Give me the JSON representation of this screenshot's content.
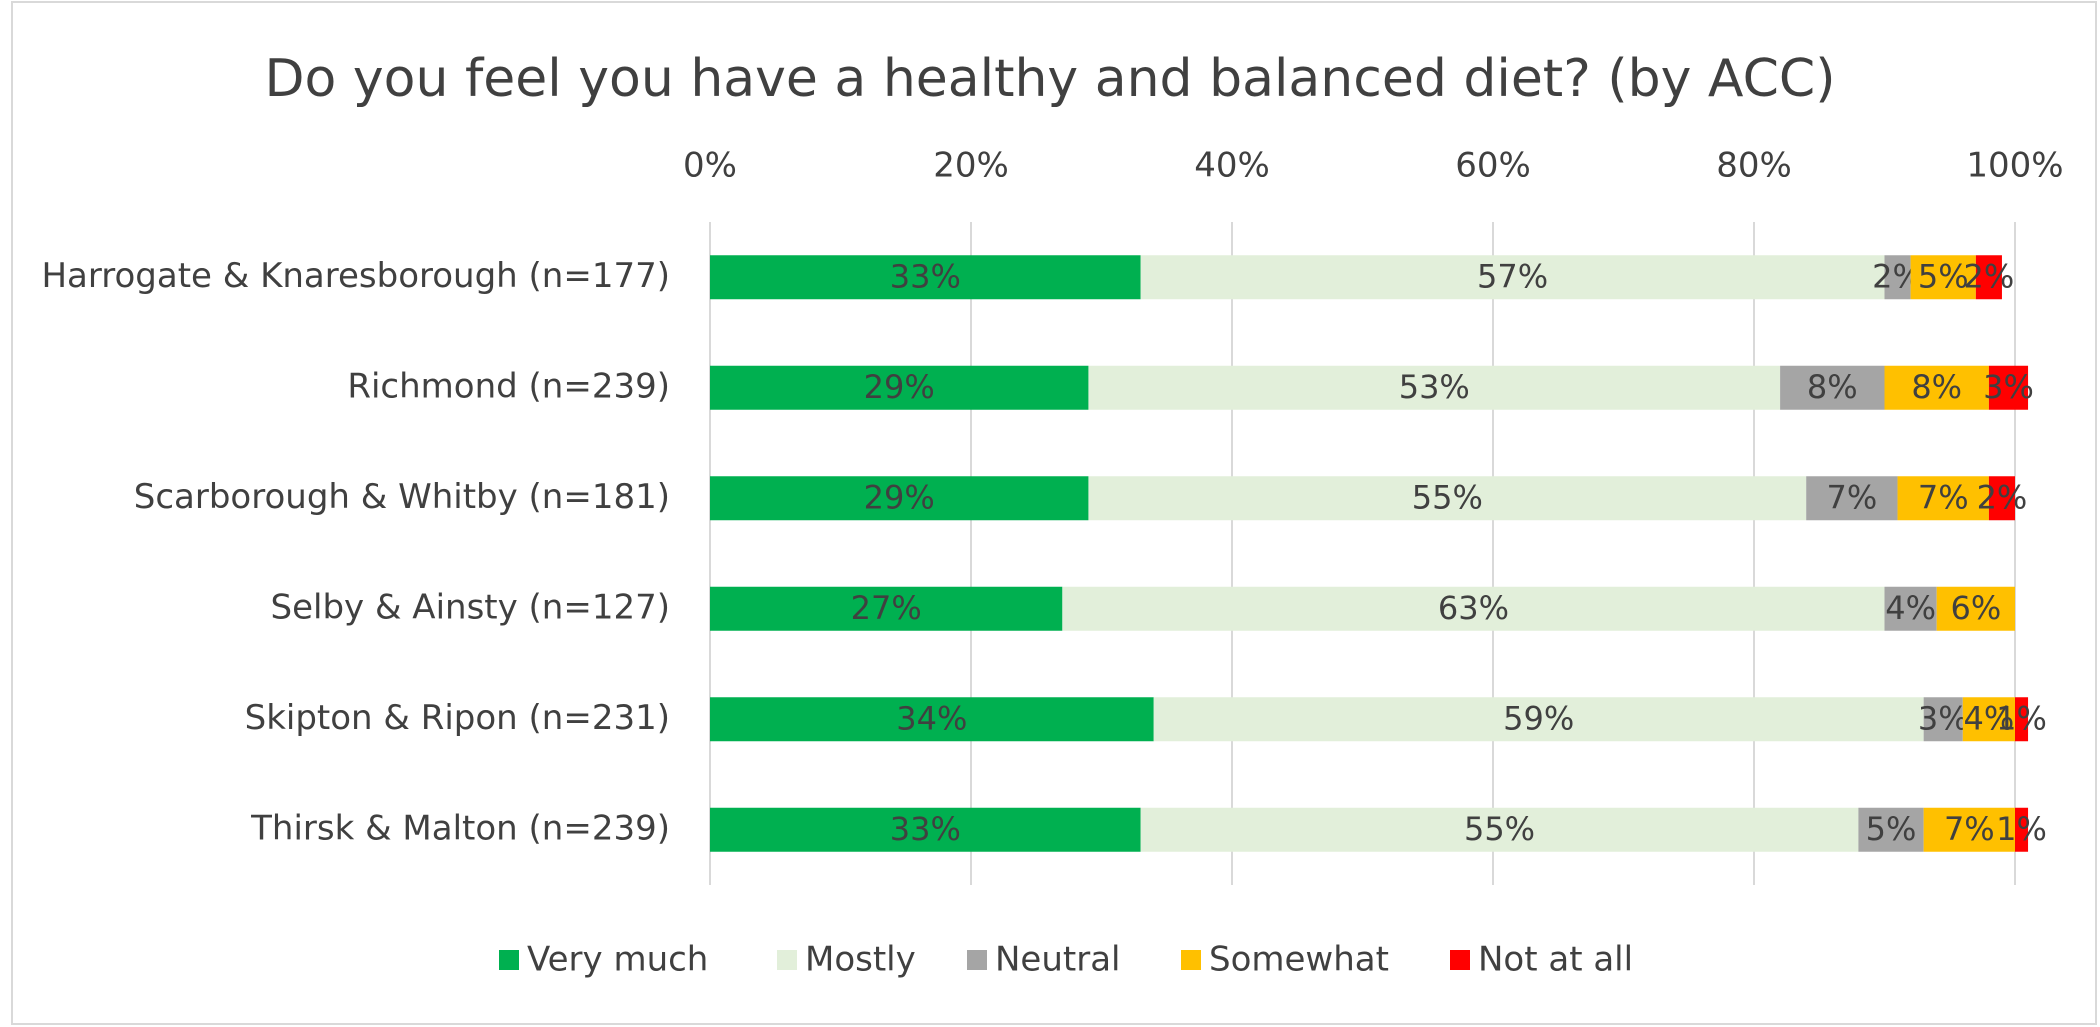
{
  "chart_data": {
    "type": "stacked-bar-horizontal",
    "title": "Do you feel you have a healthy and balanced diet? (by ACC)",
    "categories": [
      "Harrogate & Knaresborough (n=177)",
      "Richmond (n=239)",
      "Scarborough & Whitby (n=181)",
      "Selby & Ainsty (n=127)",
      "Skipton & Ripon (n=231)",
      "Thirsk & Malton (n=239)"
    ],
    "series": [
      {
        "name": "Very much",
        "color": "#00b050",
        "values": [
          33,
          29,
          29,
          27,
          34,
          33
        ],
        "value_labels": [
          "33%",
          "29%",
          "29%",
          "27%",
          "34%",
          "33%"
        ]
      },
      {
        "name": "Mostly",
        "color": "#e2efda",
        "values": [
          57,
          53,
          55,
          63,
          59,
          55
        ],
        "value_labels": [
          "57%",
          "53%",
          "55%",
          "63%",
          "59%",
          "55%"
        ]
      },
      {
        "name": "Neutral",
        "color": "#a5a5a5",
        "values": [
          2,
          8,
          7,
          4,
          3,
          5
        ],
        "value_labels": [
          "2%",
          "8%",
          "7%",
          "4%",
          "3%",
          "5%"
        ]
      },
      {
        "name": "Somewhat",
        "color": "#ffc000",
        "values": [
          5,
          8,
          7,
          6,
          4,
          7
        ],
        "value_labels": [
          "5%",
          "8%",
          "7%",
          "6%",
          "4%",
          "7%"
        ]
      },
      {
        "name": "Not at all",
        "color": "#ff0000",
        "values": [
          2,
          3,
          2,
          null,
          1,
          1
        ],
        "value_labels": [
          "2%",
          "3%",
          "2%",
          null,
          "1%",
          "1%"
        ]
      }
    ],
    "xlim": [
      0,
      100
    ],
    "xticks": [
      {
        "value": 0,
        "label": "0%"
      },
      {
        "value": 20,
        "label": "20%"
      },
      {
        "value": 40,
        "label": "40%"
      },
      {
        "value": 60,
        "label": "60%"
      },
      {
        "value": 80,
        "label": "80%"
      },
      {
        "value": 100,
        "label": "100%"
      }
    ],
    "grid": true,
    "legend": "bottom"
  }
}
